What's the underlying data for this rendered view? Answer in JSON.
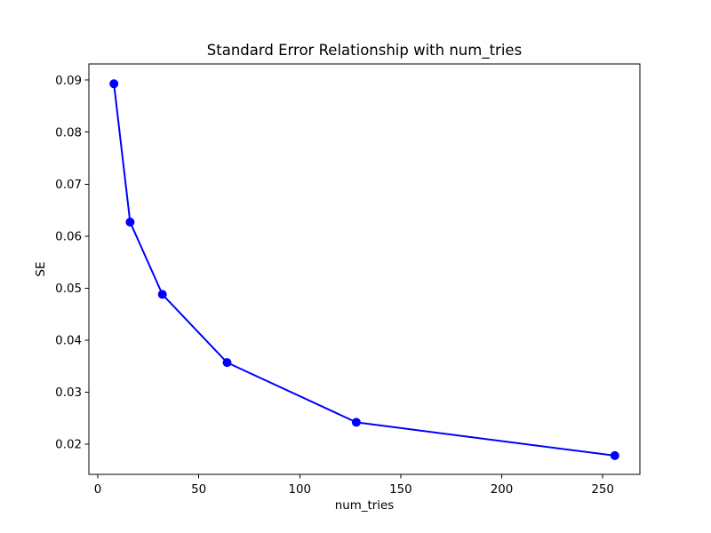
{
  "chart_data": {
    "type": "line",
    "title": "Standard Error Relationship with num_tries",
    "xlabel": "num_tries",
    "ylabel": "SE",
    "x": [
      8,
      16,
      32,
      64,
      128,
      256
    ],
    "y": [
      0.0893,
      0.0627,
      0.0488,
      0.0357,
      0.0242,
      0.0178
    ],
    "line_color": "#0000ff",
    "marker_color": "#0000ff",
    "marker_style": "circle",
    "background_color": "#ffffff",
    "spine_color": "#000000",
    "xlim": [
      -4.4,
      268.4
    ],
    "ylim": [
      0.0142,
      0.0931
    ],
    "x_ticks": [
      0,
      50,
      100,
      150,
      200,
      250
    ],
    "x_tick_labels": [
      "0",
      "50",
      "100",
      "150",
      "200",
      "250"
    ],
    "y_ticks": [
      0.02,
      0.03,
      0.04,
      0.05,
      0.06,
      0.07,
      0.08,
      0.09
    ],
    "y_tick_labels": [
      "0.02",
      "0.03",
      "0.04",
      "0.05",
      "0.06",
      "0.07",
      "0.08",
      "0.09"
    ],
    "grid": false,
    "legend": false
  }
}
